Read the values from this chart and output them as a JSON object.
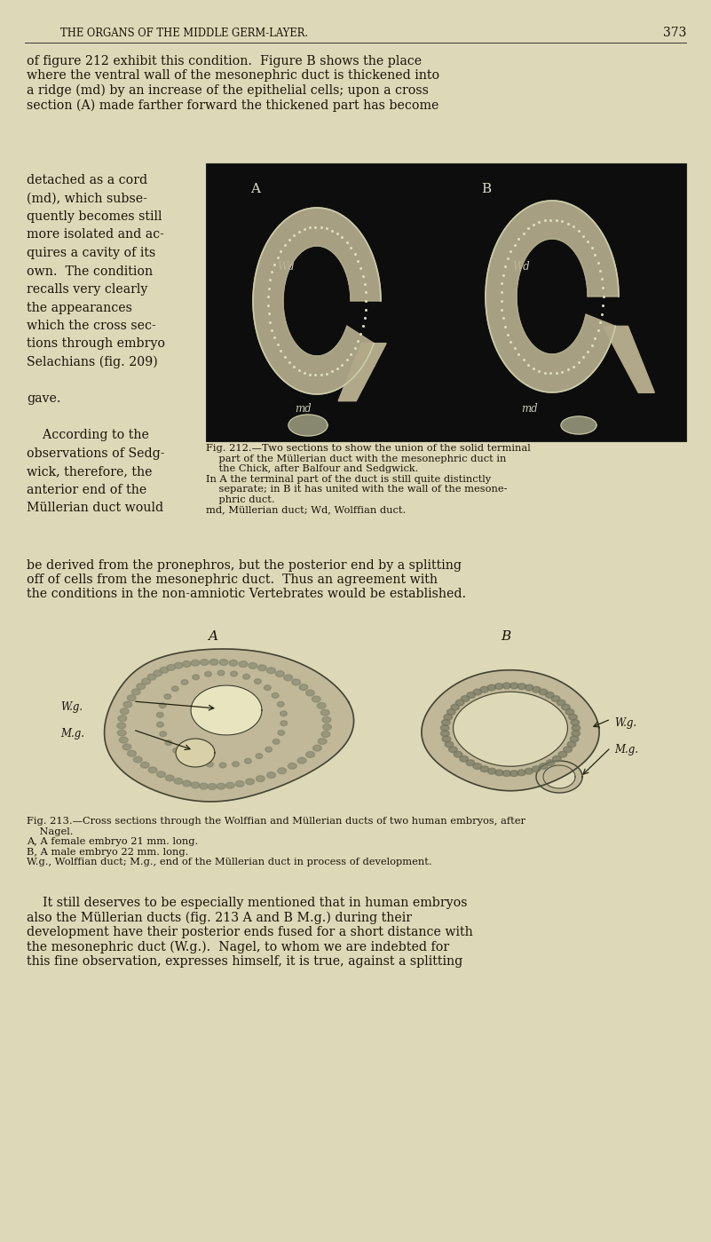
{
  "background_color": "#ddd9b8",
  "page_width": 8.01,
  "page_height": 13.99,
  "header_text": "THE ORGANS OF THE MIDDLE GERM-LAYER.",
  "page_number": "373",
  "body_fontsize": 10.2,
  "caption_fontsize": 8.2,
  "para1": "of figure 212 exhibit this condition.  Figure B shows the place\nwhere the ventral wall of the mesonephric duct is thickened into\na ridge (md) by an increase of the epithelial cells; upon a cross\nsection (A) made farther forward the thickened part has become",
  "left_col": [
    "detached as a cord",
    "(md), which subse-",
    "quently becomes still",
    "more isolated and ac-",
    "quires a cavity of its",
    "own.  The condition",
    "recalls very clearly",
    "the appearances",
    "which the cross sec-",
    "tions through embryo",
    "Selachians (fig. 209)",
    "",
    "gave.",
    "",
    "    According to the",
    "observations of Sedg-",
    "wick, therefore, the",
    "anterior end of the",
    "Müllerian duct would"
  ],
  "cap212": "Fig. 212.—Two sections to show the union of the solid terminal\n    part of the Müllerian duct with the mesonephric duct in\n    the Chick, after Balfour and Sedgwick.\nIn A the terminal part of the duct is still quite distinctly\n    separate; in B it has united with the wall of the mesone-\n    phric duct.\nmd, Müllerian duct; Wd, Wolffian duct.",
  "full1": "be derived from the pronephros, but the posterior end by a splitting\noff of cells from the mesonephric duct.  Thus an agreement with\nthe conditions in the non-amniotic Vertebrates would be established.",
  "cap213": "Fig. 213.—Cross sections through the Wolffian and Müllerian ducts of two human embryos, after\n    Nagel.\nA, A female embryo 21 mm. long.\nB, A male embryo 22 mm. long.\nW.g., Wolffian duct; M.g., end of the Müllerian duct in process of development.",
  "bottom": "    It still deserves to be especially mentioned that in human embryos\nalso the Müllerian ducts (fig. 213 A and B M.g.) during their\ndevelopment have their posterior ends fused for a short distance with\nthe mesonephric duct (W.g.).  Nagel, to whom we are indebted for\nthis fine observation, expresses himself, it is true, against a splitting"
}
